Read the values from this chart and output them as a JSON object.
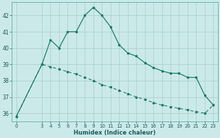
{
  "title": "",
  "xlabel": "Humidex (Indice chaleur)",
  "bg_color": "#cce9e9",
  "grid_color": "#aad0d0",
  "line_color": "#1a7a6a",
  "line1_x": [
    0,
    3,
    4,
    5,
    6,
    7,
    8,
    9,
    10,
    11,
    12,
    13,
    14,
    15,
    16,
    17,
    18,
    19,
    20,
    21,
    22,
    23
  ],
  "line1_y": [
    35.8,
    39.0,
    40.5,
    40.0,
    41.0,
    41.0,
    42.0,
    42.5,
    42.0,
    41.3,
    40.2,
    39.7,
    39.5,
    39.1,
    38.8,
    38.6,
    38.45,
    38.45,
    38.2,
    38.2,
    37.1,
    36.5
  ],
  "line2_x": [
    0,
    3,
    4,
    5,
    6,
    7,
    8,
    9,
    10,
    11,
    12,
    13,
    14,
    15,
    16,
    17,
    18,
    19,
    20,
    21,
    22,
    23
  ],
  "line2_y": [
    35.8,
    39.0,
    38.85,
    38.7,
    38.55,
    38.4,
    38.2,
    38.0,
    37.75,
    37.6,
    37.4,
    37.2,
    37.0,
    36.85,
    36.65,
    36.5,
    36.4,
    36.3,
    36.2,
    36.1,
    36.0,
    36.5
  ],
  "xlim": [
    -0.5,
    23.5
  ],
  "ylim": [
    35.5,
    42.8
  ],
  "yticks": [
    36,
    37,
    38,
    39,
    40,
    41,
    42
  ],
  "xticks": [
    0,
    3,
    4,
    5,
    6,
    7,
    8,
    9,
    10,
    11,
    12,
    13,
    14,
    15,
    16,
    17,
    18,
    19,
    20,
    21,
    22,
    23
  ]
}
